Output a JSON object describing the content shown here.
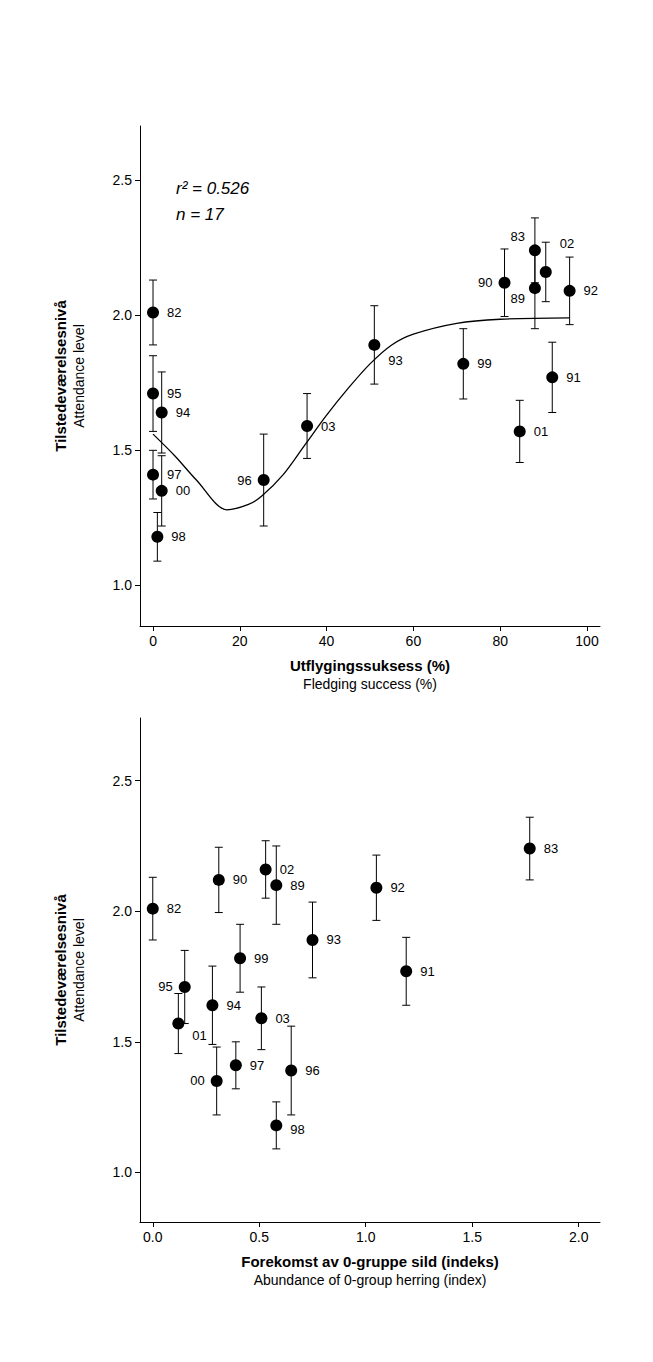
{
  "chart_data": [
    {
      "type": "scatter",
      "xlabel": [
        "Utflygingssuksess (%)",
        "Fledging success (%)"
      ],
      "ylabel": [
        "Tilstedeværelsesnivå",
        "Attendance level"
      ],
      "annotations": [
        "r² = 0.526",
        "n = 17"
      ],
      "labels": [
        "82",
        "83",
        "89",
        "90",
        "91",
        "92",
        "93",
        "94",
        "95",
        "96",
        "97",
        "98",
        "99",
        "00",
        "01",
        "02",
        "03"
      ],
      "x": [
        0,
        88,
        88,
        81,
        92,
        96,
        51,
        2,
        0,
        25.5,
        0,
        1,
        71.5,
        2,
        84.5,
        90.5,
        35.5
      ],
      "values": [
        2.01,
        2.24,
        2.1,
        2.12,
        1.77,
        2.09,
        1.89,
        1.64,
        1.71,
        1.39,
        1.41,
        1.18,
        1.82,
        1.35,
        1.57,
        2.16,
        1.59
      ],
      "yerr": [
        0.12,
        0.12,
        0.15,
        0.125,
        0.13,
        0.125,
        0.145,
        0.15,
        0.14,
        0.17,
        0.09,
        0.09,
        0.13,
        0.13,
        0.115,
        0.11,
        0.12
      ],
      "color": "#000000",
      "marker": "circle",
      "fit": {
        "line_style": "solid",
        "x": [
          0,
          5,
          10,
          17,
          22,
          25,
          30,
          35,
          40,
          45,
          50,
          55,
          60,
          70,
          80,
          96
        ],
        "y": [
          1.56,
          1.48,
          1.39,
          1.28,
          1.3,
          1.33,
          1.41,
          1.52,
          1.63,
          1.73,
          1.82,
          1.89,
          1.93,
          1.97,
          1.985,
          1.99
        ]
      },
      "xlim": [
        -3,
        103
      ],
      "xticks": [
        0,
        20,
        40,
        60,
        80,
        100
      ],
      "ylim": [
        0.85,
        2.7
      ],
      "yticks": [
        {
          "value": 1,
          "label": "1.0"
        },
        1.5,
        {
          "value": 2,
          "label": "2.0"
        },
        2.5
      ],
      "grid": false
    },
    {
      "type": "scatter",
      "xlabel": [
        "Forekomst av 0-gruppe sild (indeks)",
        "Abundance of 0-group herring (index)"
      ],
      "ylabel": [
        "Tilstedeværelsesnivå",
        "Attendance level"
      ],
      "labels": [
        "82",
        "83",
        "89",
        "90",
        "91",
        "92",
        "93",
        "94",
        "95",
        "96",
        "97",
        "98",
        "99",
        "00",
        "01",
        "02",
        "03"
      ],
      "x": [
        0,
        1.77,
        0.58,
        0.31,
        1.19,
        1.05,
        0.75,
        0.28,
        0.15,
        0.65,
        0.39,
        0.58,
        0.41,
        0.3,
        0.12,
        0.53,
        0.51
      ],
      "values": [
        2.01,
        2.24,
        2.1,
        2.12,
        1.77,
        2.09,
        1.89,
        1.64,
        1.71,
        1.39,
        1.41,
        1.18,
        1.82,
        1.35,
        1.57,
        2.16,
        1.59
      ],
      "yerr": [
        0.12,
        0.12,
        0.15,
        0.125,
        0.13,
        0.125,
        0.145,
        0.15,
        0.14,
        0.17,
        0.09,
        0.09,
        0.13,
        0.13,
        0.115,
        0.11,
        0.12
      ],
      "color": "#000000",
      "marker": "circle",
      "xlim": [
        -0.06,
        2.1
      ],
      "xticks": [
        {
          "value": 0,
          "label": "0.0"
        },
        0.5,
        {
          "value": 1,
          "label": "1.0"
        },
        1.5,
        {
          "value": 2,
          "label": "2.0"
        }
      ],
      "ylim": [
        0.81,
        2.74
      ],
      "yticks": [
        {
          "value": 1,
          "label": "1.0"
        },
        1.5,
        {
          "value": 2,
          "label": "2.0"
        },
        2.5
      ],
      "grid": false
    }
  ]
}
